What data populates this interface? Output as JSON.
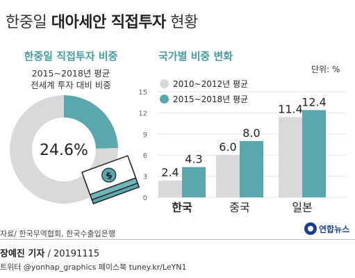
{
  "title": {
    "part1": "한중일 ",
    "part2": "대아세안 직접투자",
    "part3": " 현황"
  },
  "left": {
    "heading": "한중일 직접투자 비중",
    "sub1": "2015~2018년 평균",
    "sub2": "전세계 투자 대비 비중",
    "center_label": "24.6%"
  },
  "right": {
    "heading": "국가별 비중 변화",
    "unit": "단위: %"
  },
  "footer": {
    "source": "자료/ 한국무역협회, 한국수출입은행",
    "byline_name": "장예진 기자",
    "byline_date": " / 20191115",
    "social": "트위터 @yonhap_graphics  페이스북 tuney.kr/LeYN1",
    "logo": "연합뉴스"
  },
  "colors": {
    "teal": "#5aa7ad",
    "gray": "#d9d9d9",
    "heading": "#4a9aa0"
  },
  "icons": [
    "money-stack-icon",
    "yonhap-logo-icon"
  ],
  "chart_data": [
    {
      "type": "pie",
      "values": [
        24.6,
        75.4
      ],
      "labels": [
        "24.6%",
        ""
      ]
    },
    {
      "type": "bar",
      "categories": [
        "한국",
        "중국",
        "일본"
      ],
      "series": [
        {
          "name": "2010~2012년 평균",
          "values": [
            2.4,
            6.0,
            11.4
          ]
        },
        {
          "name": "2015~2018년 평균",
          "values": [
            4.3,
            8.0,
            12.4
          ]
        }
      ],
      "yticks": [
        0,
        3,
        6,
        9,
        12,
        15
      ],
      "ylim": [
        0,
        15
      ],
      "legend": "top-left"
    }
  ]
}
